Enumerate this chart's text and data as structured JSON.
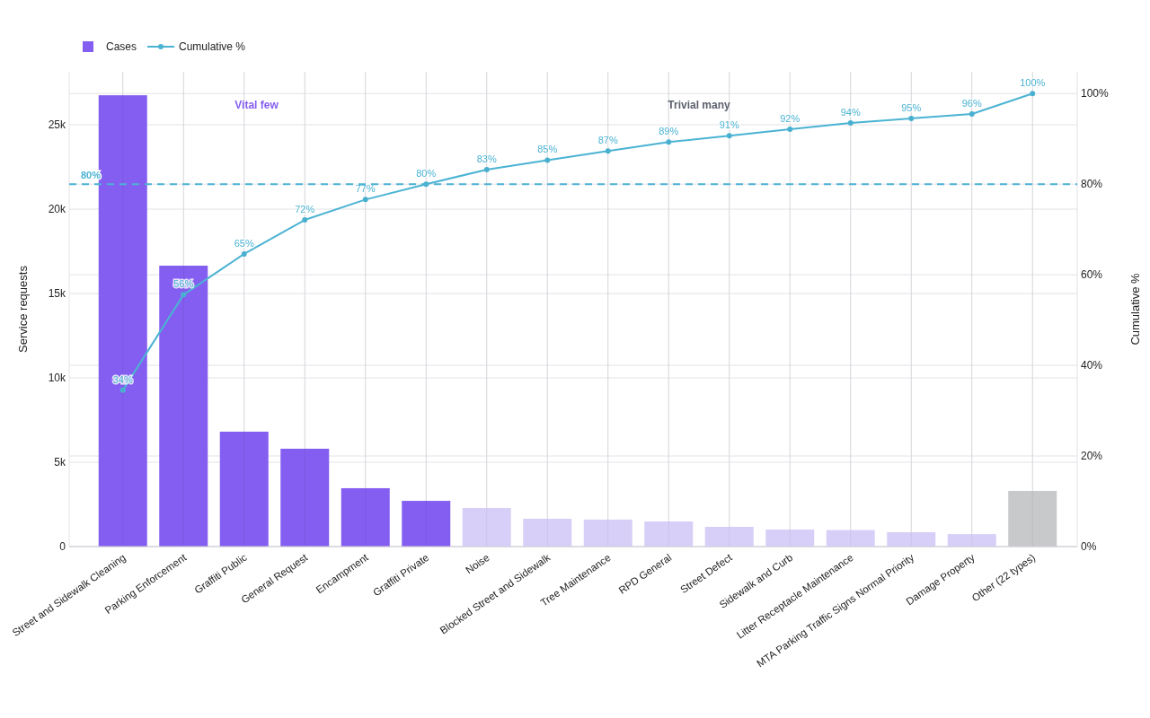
{
  "chart_data": {
    "type": "bar",
    "ylabel": "Service requests",
    "y2label": "Cumulative %",
    "categories": [
      "Street and Sidewalk Cleaning",
      "Parking Enforcement",
      "Graffiti Public",
      "General Request",
      "Encampment",
      "Graffiti Private",
      "Noise",
      "Blocked Street and Sidewalk",
      "Tree Maintenance",
      "RPD General",
      "Street Defect",
      "Sidewalk and Curb",
      "Litter Receptacle Maintenance",
      "MTA Parking Traffic Signs Normal Priority",
      "Damage Property",
      "Other (22 types)"
    ],
    "series": [
      {
        "name": "Cases",
        "color": "#845ef0",
        "colors": [
          "#845ef0",
          "#845ef0",
          "#845ef0",
          "#845ef0",
          "#845ef0",
          "#845ef0",
          "#d8cff8",
          "#d8cff8",
          "#d8cff8",
          "#d8cff8",
          "#d8cff8",
          "#d8cff8",
          "#d8cff8",
          "#d8cff8",
          "#d8cff8",
          "#c8c9cb"
        ],
        "values": [
          26750,
          16650,
          6810,
          5800,
          3460,
          2710,
          2290,
          1650,
          1600,
          1490,
          1170,
          1010,
          980,
          850,
          740,
          3300
        ]
      },
      {
        "name": "Cumulative %",
        "type": "line",
        "axis": "y2",
        "color": "#4bb3d3",
        "marker": "circle",
        "values": [
          34.5,
          55.6,
          64.6,
          72.1,
          76.6,
          80.0,
          83.2,
          85.3,
          87.3,
          89.3,
          90.7,
          92.1,
          93.5,
          94.5,
          95.5,
          100
        ],
        "value_labels": [
          "34%",
          "56%",
          "65%",
          "72%",
          "77%",
          "80%",
          "83%",
          "85%",
          "87%",
          "89%",
          "91%",
          "92%",
          "94%",
          "95%",
          "96%",
          "100%"
        ]
      }
    ],
    "ylim": [
      0,
      28140
    ],
    "yticks": [
      {
        "value": 0,
        "label": "0"
      },
      {
        "value": 5000,
        "label": "5k"
      },
      {
        "value": 10000,
        "label": "10k"
      },
      {
        "value": 15000,
        "label": "15k"
      },
      {
        "value": 20000,
        "label": "20k"
      },
      {
        "value": 25000,
        "label": "25k"
      }
    ],
    "y2lim": [
      0,
      104.8
    ],
    "y2ticks": [
      {
        "value": 0,
        "label": "0%"
      },
      {
        "value": 20,
        "label": "20%"
      },
      {
        "value": 40,
        "label": "40%"
      },
      {
        "value": 60,
        "label": "60%"
      },
      {
        "value": 80,
        "label": "80%"
      },
      {
        "value": 100,
        "label": "100%"
      }
    ],
    "ref_lines": [
      {
        "axis": "y2",
        "value": 80,
        "label": "80%",
        "color": "#4bb3d3",
        "line_style": "dashed"
      }
    ],
    "annotations": [
      "Vital few",
      "Trivial many"
    ],
    "grid": true,
    "legend": "top left"
  }
}
